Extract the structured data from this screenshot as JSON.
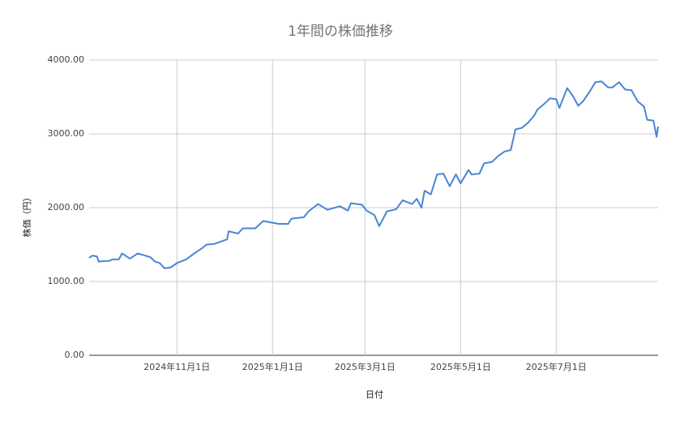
{
  "chart_data": {
    "type": "line",
    "title": "1年間の株価推移",
    "x_label": "日付",
    "y_label": "株価（円）",
    "x": [
      "2024-09-06",
      "2024-09-08",
      "2024-09-11",
      "2024-09-12",
      "2024-09-19",
      "2024-09-21",
      "2024-09-25",
      "2024-09-27",
      "2024-10-02",
      "2024-10-07",
      "2024-10-15",
      "2024-10-18",
      "2024-10-21",
      "2024-10-24",
      "2024-10-28",
      "2024-11-01",
      "2024-11-07",
      "2024-11-12",
      "2024-11-17",
      "2024-11-20",
      "2024-11-25",
      "2024-12-03",
      "2024-12-04",
      "2024-12-10",
      "2024-12-13",
      "2024-12-21",
      "2024-12-26",
      "2025-01-05",
      "2025-01-11",
      "2025-01-13",
      "2025-01-21",
      "2025-01-24",
      "2025-01-30",
      "2025-02-05",
      "2025-02-13",
      "2025-02-18",
      "2025-02-20",
      "2025-02-27",
      "2025-03-02",
      "2025-03-07",
      "2025-03-10",
      "2025-03-15",
      "2025-03-21",
      "2025-03-25",
      "2025-03-31",
      "2025-04-03",
      "2025-04-06",
      "2025-04-08",
      "2025-04-12",
      "2025-04-16",
      "2025-04-20",
      "2025-04-24",
      "2025-04-28",
      "2025-05-01",
      "2025-05-06",
      "2025-05-08",
      "2025-05-13",
      "2025-05-16",
      "2025-05-21",
      "2025-05-25",
      "2025-05-29",
      "2025-06-02",
      "2025-06-05",
      "2025-06-09",
      "2025-06-13",
      "2025-06-17",
      "2025-06-19",
      "2025-06-23",
      "2025-06-27",
      "2025-07-01",
      "2025-07-03",
      "2025-07-08",
      "2025-07-12",
      "2025-07-15",
      "2025-07-18",
      "2025-07-22",
      "2025-07-26",
      "2025-07-30",
      "2025-08-03",
      "2025-08-06",
      "2025-08-10",
      "2025-08-14",
      "2025-08-18",
      "2025-08-22",
      "2025-08-26",
      "2025-08-28",
      "2025-09-01",
      "2025-09-03",
      "2025-09-04"
    ],
    "series": [
      {
        "name": "株価",
        "color": "#4a86d4",
        "values": [
          1320,
          1350,
          1340,
          1270,
          1280,
          1300,
          1300,
          1380,
          1310,
          1380,
          1330,
          1270,
          1250,
          1180,
          1190,
          1250,
          1300,
          1380,
          1450,
          1500,
          1510,
          1570,
          1680,
          1650,
          1720,
          1720,
          1820,
          1780,
          1780,
          1850,
          1870,
          1950,
          2050,
          1970,
          2020,
          1960,
          2060,
          2040,
          1960,
          1900,
          1750,
          1950,
          1980,
          2100,
          2050,
          2120,
          2000,
          2230,
          2180,
          2450,
          2460,
          2290,
          2450,
          2330,
          2510,
          2450,
          2460,
          2600,
          2620,
          2700,
          2760,
          2780,
          3060,
          3080,
          3150,
          3250,
          3330,
          3400,
          3480,
          3470,
          3350,
          3620,
          3500,
          3380,
          3440,
          3560,
          3700,
          3710,
          3630,
          3630,
          3700,
          3600,
          3590,
          3440,
          3370,
          3190,
          3180,
          2960,
          3100
        ]
      }
    ],
    "xlim": [
      "2024-09-06",
      "2025-09-04"
    ],
    "xticks": [
      {
        "value": "2024-11-01",
        "label": "2024年11月1日"
      },
      {
        "value": "2025-01-01",
        "label": "2025年1月1日"
      },
      {
        "value": "2025-03-01",
        "label": "2025年3月1日"
      },
      {
        "value": "2025-05-01",
        "label": "2025年5月1日"
      },
      {
        "value": "2025-07-01",
        "label": "2025年7月1日"
      }
    ],
    "ylim": [
      0,
      4000
    ],
    "yticks": [
      {
        "value": 0,
        "label": "0.00"
      },
      {
        "value": 1000,
        "label": "1000.00"
      },
      {
        "value": 2000,
        "label": "2000.00"
      },
      {
        "value": 3000,
        "label": "3000.00"
      },
      {
        "value": 4000,
        "label": "4000.00"
      }
    ],
    "grid": true
  }
}
